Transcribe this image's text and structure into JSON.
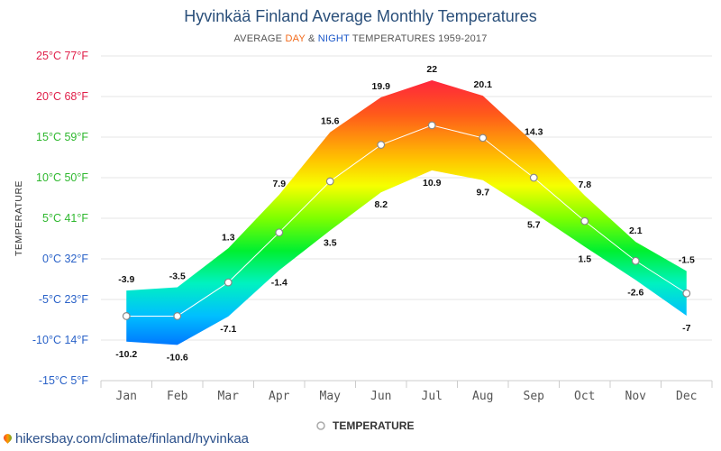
{
  "chart_data": {
    "type": "area",
    "title": "Hyvinkää Finland Average Monthly Temperatures",
    "subtitle": {
      "prefix": "AVERAGE ",
      "day": "DAY",
      "middle": " & ",
      "night": "NIGHT",
      "suffix": " TEMPERATURES 1959-2017",
      "day_color": "#f26a1b",
      "night_color": "#1a57c9"
    },
    "ylabel": "TEMPERATURE",
    "ylim": [
      -15,
      25
    ],
    "yticks": [
      {
        "value": 25,
        "label": "25°C 77°F",
        "color": "#e0204a"
      },
      {
        "value": 20,
        "label": "20°C 68°F",
        "color": "#e0204a"
      },
      {
        "value": 15,
        "label": "15°C 59°F",
        "color": "#2fb82f"
      },
      {
        "value": 10,
        "label": "10°C 50°F",
        "color": "#2fb82f"
      },
      {
        "value": 5,
        "label": "5°C 41°F",
        "color": "#2fb82f"
      },
      {
        "value": 0,
        "label": "0°C 32°F",
        "color": "#2a62c8"
      },
      {
        "value": -5,
        "label": "-5°C 23°F",
        "color": "#2a62c8"
      },
      {
        "value": -10,
        "label": "-10°C 14°F",
        "color": "#2a62c8"
      },
      {
        "value": -15,
        "label": "-15°C 5°F",
        "color": "#2a62c8"
      }
    ],
    "categories": [
      "Jan",
      "Feb",
      "Mar",
      "Apr",
      "May",
      "Jun",
      "Jul",
      "Aug",
      "Sep",
      "Oct",
      "Nov",
      "Dec"
    ],
    "day": [
      -3.9,
      -3.5,
      1.3,
      7.9,
      15.6,
      19.9,
      22,
      20.1,
      14.3,
      7.8,
      2.1,
      -1.5
    ],
    "night": [
      -10.2,
      -10.6,
      -7.1,
      -1.4,
      3.5,
      8.2,
      10.9,
      9.7,
      5.7,
      1.5,
      -2.6,
      -7
    ],
    "day_labels": [
      "-3.9",
      "-3.5",
      "1.3",
      "7.9",
      "15.6",
      "19.9",
      "22",
      "20.1",
      "14.3",
      "7.8",
      "2.1",
      "-1.5"
    ],
    "night_labels": [
      "-10.2",
      "-10.6",
      "-7.1",
      "-1.4",
      "3.5",
      "8.2",
      "10.9",
      "9.7",
      "5.7",
      "1.5",
      "-2.6",
      "-7"
    ],
    "legend": {
      "label": "TEMPERATURE",
      "position": "bottom"
    },
    "grid": true
  },
  "footer": {
    "text": "hikersbay.com/climate/finland/hyvinkaa"
  }
}
